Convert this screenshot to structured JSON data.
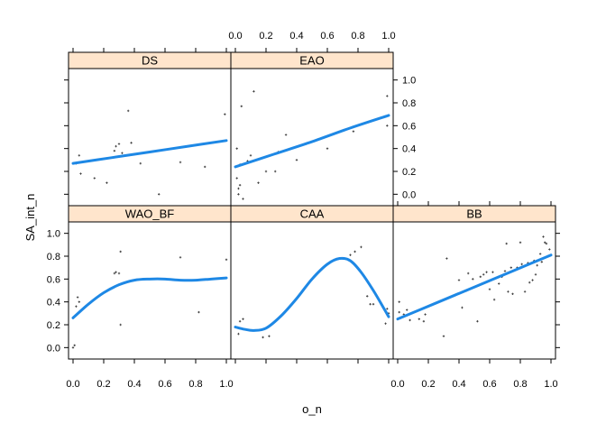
{
  "chart_data": {
    "type": "scatter",
    "title": "",
    "xlabel": "o_n",
    "ylabel": "SA_int_n",
    "xlim": [
      0,
      1
    ],
    "ylim": [
      -0.1,
      1.1
    ],
    "x_ticks": [
      0,
      0.2,
      0.4,
      0.6,
      0.8,
      1
    ],
    "y_ticks": [
      0,
      0.2,
      0.4,
      0.6,
      0.8,
      1
    ],
    "x_tick_labels": [
      "0.0",
      "0.2",
      "0.4",
      "0.6",
      "0.8",
      "1.0"
    ],
    "y_tick_labels": [
      "0.0",
      "0.2",
      "0.4",
      "0.6",
      "0.8",
      "1.0"
    ],
    "colors": {
      "strip": "#ffe5cc",
      "line": "#1e88e5",
      "points": "#333333"
    },
    "panels": [
      {
        "name": "DS",
        "points": [
          [
            0.02,
            0.27
          ],
          [
            0.04,
            0.34
          ],
          [
            0.05,
            0.18
          ],
          [
            0.14,
            0.14
          ],
          [
            0.22,
            0.1
          ],
          [
            0.27,
            0.38
          ],
          [
            0.28,
            0.42
          ],
          [
            0.3,
            0.44
          ],
          [
            0.32,
            0.36
          ],
          [
            0.36,
            0.73
          ],
          [
            0.38,
            0.45
          ],
          [
            0.44,
            0.27
          ],
          [
            0.56,
            0.0
          ],
          [
            0.7,
            0.28
          ],
          [
            0.86,
            0.24
          ],
          [
            0.99,
            0.7
          ]
        ],
        "fit": [
          [
            0,
            0.27
          ],
          [
            0.25,
            0.32
          ],
          [
            0.5,
            0.37
          ],
          [
            0.75,
            0.42
          ],
          [
            1,
            0.47
          ]
        ]
      },
      {
        "name": "EAO",
        "points": [
          [
            0.01,
            0.4
          ],
          [
            0.01,
            0.14
          ],
          [
            0.02,
            0.05
          ],
          [
            0.02,
            0.0
          ],
          [
            0.03,
            0.26
          ],
          [
            0.03,
            0.08
          ],
          [
            0.04,
            0.77
          ],
          [
            0.05,
            -0.04
          ],
          [
            0.08,
            0.29
          ],
          [
            0.1,
            0.34
          ],
          [
            0.12,
            0.9
          ],
          [
            0.15,
            0.1
          ],
          [
            0.2,
            0.2
          ],
          [
            0.26,
            0.2
          ],
          [
            0.28,
            0.37
          ],
          [
            0.33,
            0.52
          ],
          [
            0.4,
            0.3
          ],
          [
            0.46,
            0.44
          ],
          [
            0.6,
            0.4
          ],
          [
            0.77,
            0.55
          ],
          [
            0.99,
            0.86
          ],
          [
            0.99,
            0.6
          ]
        ],
        "fit": [
          [
            0,
            0.24
          ],
          [
            0.25,
            0.35
          ],
          [
            0.5,
            0.46
          ],
          [
            0.75,
            0.58
          ],
          [
            1,
            0.69
          ]
        ]
      },
      {
        "name": "WAO_BF",
        "points": [
          [
            0.0,
            0.0
          ],
          [
            0.01,
            0.02
          ],
          [
            0.02,
            0.36
          ],
          [
            0.03,
            0.44
          ],
          [
            0.04,
            0.4
          ],
          [
            0.27,
            0.65
          ],
          [
            0.28,
            0.66
          ],
          [
            0.3,
            0.65
          ],
          [
            0.31,
            0.84
          ],
          [
            0.31,
            0.2
          ],
          [
            0.7,
            0.79
          ],
          [
            0.82,
            0.31
          ],
          [
            1.0,
            0.77
          ]
        ],
        "fit": [
          [
            0,
            0.26
          ],
          [
            0.1,
            0.38
          ],
          [
            0.2,
            0.48
          ],
          [
            0.3,
            0.55
          ],
          [
            0.4,
            0.59
          ],
          [
            0.5,
            0.6
          ],
          [
            0.6,
            0.6
          ],
          [
            0.7,
            0.59
          ],
          [
            0.8,
            0.59
          ],
          [
            0.9,
            0.6
          ],
          [
            1,
            0.61
          ]
        ]
      },
      {
        "name": "CAA",
        "points": [
          [
            0.02,
            0.12
          ],
          [
            0.03,
            0.23
          ],
          [
            0.05,
            0.25
          ],
          [
            0.18,
            0.09
          ],
          [
            0.22,
            0.1
          ],
          [
            0.7,
            0.78
          ],
          [
            0.75,
            0.81
          ],
          [
            0.78,
            0.84
          ],
          [
            0.82,
            0.88
          ],
          [
            0.86,
            0.45
          ],
          [
            0.88,
            0.38
          ],
          [
            0.9,
            0.38
          ],
          [
            0.98,
            0.21
          ],
          [
            0.99,
            0.34
          ],
          [
            1.0,
            0.3
          ]
        ],
        "fit": [
          [
            0,
            0.18
          ],
          [
            0.06,
            0.16
          ],
          [
            0.12,
            0.15
          ],
          [
            0.2,
            0.17
          ],
          [
            0.3,
            0.28
          ],
          [
            0.4,
            0.43
          ],
          [
            0.5,
            0.6
          ],
          [
            0.6,
            0.73
          ],
          [
            0.68,
            0.78
          ],
          [
            0.75,
            0.76
          ],
          [
            0.82,
            0.66
          ],
          [
            0.9,
            0.5
          ],
          [
            0.97,
            0.34
          ],
          [
            1,
            0.27
          ]
        ]
      },
      {
        "name": "BB",
        "points": [
          [
            0.01,
            0.4
          ],
          [
            0.01,
            0.31
          ],
          [
            0.02,
            0.26
          ],
          [
            0.04,
            0.29
          ],
          [
            0.06,
            0.33
          ],
          [
            0.08,
            0.24
          ],
          [
            0.14,
            0.25
          ],
          [
            0.17,
            0.23
          ],
          [
            0.18,
            0.29
          ],
          [
            0.3,
            0.1
          ],
          [
            0.32,
            0.78
          ],
          [
            0.4,
            0.59
          ],
          [
            0.42,
            0.35
          ],
          [
            0.45,
            0.5
          ],
          [
            0.46,
            0.65
          ],
          [
            0.49,
            0.6
          ],
          [
            0.52,
            0.23
          ],
          [
            0.54,
            0.62
          ],
          [
            0.56,
            0.64
          ],
          [
            0.58,
            0.66
          ],
          [
            0.6,
            0.51
          ],
          [
            0.62,
            0.66
          ],
          [
            0.63,
            0.42
          ],
          [
            0.66,
            0.56
          ],
          [
            0.68,
            0.62
          ],
          [
            0.7,
            0.67
          ],
          [
            0.71,
            0.91
          ],
          [
            0.72,
            0.49
          ],
          [
            0.74,
            0.7
          ],
          [
            0.75,
            0.47
          ],
          [
            0.78,
            0.7
          ],
          [
            0.8,
            0.92
          ],
          [
            0.81,
            0.73
          ],
          [
            0.83,
            0.49
          ],
          [
            0.85,
            0.74
          ],
          [
            0.86,
            0.57
          ],
          [
            0.88,
            0.59
          ],
          [
            0.89,
            0.76
          ],
          [
            0.9,
            0.64
          ],
          [
            0.91,
            0.72
          ],
          [
            0.93,
            0.82
          ],
          [
            0.94,
            0.75
          ],
          [
            0.95,
            0.97
          ],
          [
            0.96,
            0.92
          ],
          [
            0.97,
            0.91
          ],
          [
            0.98,
            0.8
          ],
          [
            0.99,
            0.86
          ]
        ],
        "fit": [
          [
            0,
            0.25
          ],
          [
            0.25,
            0.39
          ],
          [
            0.5,
            0.53
          ],
          [
            0.75,
            0.67
          ],
          [
            1,
            0.81
          ]
        ]
      }
    ]
  }
}
